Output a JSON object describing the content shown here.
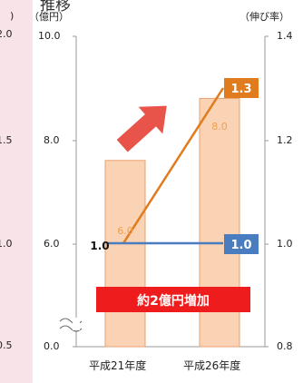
{
  "title_fragment": "推移",
  "left_outer_ticks": [
    "2.0",
    "1.5",
    "1.0",
    "0.5"
  ],
  "left_outer_paren": ")",
  "chart_data": {
    "type": "bar",
    "categories": [
      "平成21年度",
      "平成26年度"
    ],
    "bar_values": [
      6.0,
      8.0
    ],
    "bar_labels": [
      "6.0",
      "8.0"
    ],
    "y_left_label": "（億円）",
    "y_left_ticks": [
      "10.0",
      "8.0",
      "6.0",
      "0.0"
    ],
    "y_left_tick_values": [
      10.0,
      8.0,
      6.0,
      0.0
    ],
    "ylim_left": [
      0,
      10
    ],
    "y_right_label": "（伸び率）",
    "y_right_ticks": [
      "1.4",
      "1.2",
      "1.0",
      "0.8"
    ],
    "y_right_tick_values": [
      1.4,
      1.2,
      1.0,
      0.8
    ],
    "ylim_right": [
      0.8,
      1.4
    ],
    "growth_line_values": [
      1.0,
      1.3
    ],
    "baseline_line_values": [
      1.0,
      1.0
    ],
    "start_label": "1.0",
    "growth_badge": "1.3",
    "baseline_badge": "1.0",
    "annotation": "約2億円増加",
    "axis_break": true
  },
  "colors": {
    "bar_fill": "#f9d3b3",
    "bar_stroke": "#e8a070",
    "growth_line": "#e07b1e",
    "baseline_line": "#4a7dbf",
    "arrow": "#e8534a",
    "annotation_bg": "#ee1c1c",
    "background": "#f7e3e8"
  }
}
